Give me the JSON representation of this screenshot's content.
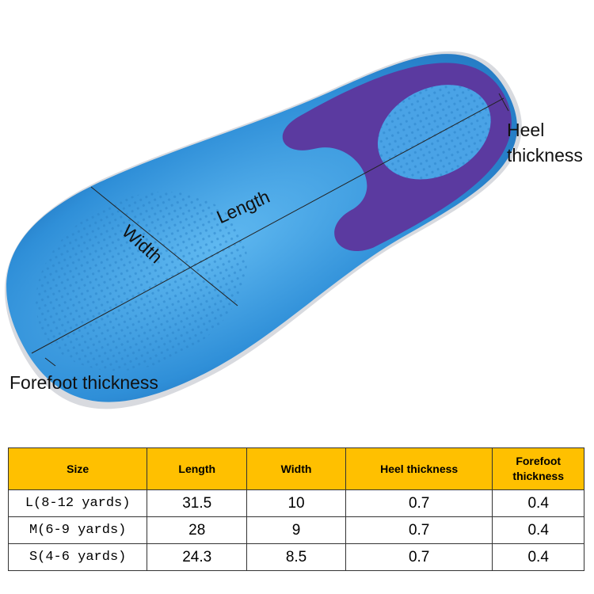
{
  "labels": {
    "length": "Length",
    "width": "Width",
    "heel_thickness_line1": "Heel",
    "heel_thickness_line2": "thickness",
    "forefoot_thickness": "Forefoot thickness"
  },
  "colors": {
    "insole_blue": "#3a9be0",
    "heel_pad_purple": "#5b3aa0",
    "header_bg": "#ffc000"
  },
  "table": {
    "headers": [
      "Size",
      "Length",
      "Width",
      "Heel thickness",
      "Forefoot thickness"
    ],
    "rows": [
      [
        "L(8-12 yards)",
        "31.5",
        "10",
        "0.7",
        "0.4"
      ],
      [
        "M(6-9 yards)",
        "28",
        "9",
        "0.7",
        "0.4"
      ],
      [
        "S(4-6 yards)",
        "24.3",
        "8.5",
        "0.7",
        "0.4"
      ]
    ]
  }
}
